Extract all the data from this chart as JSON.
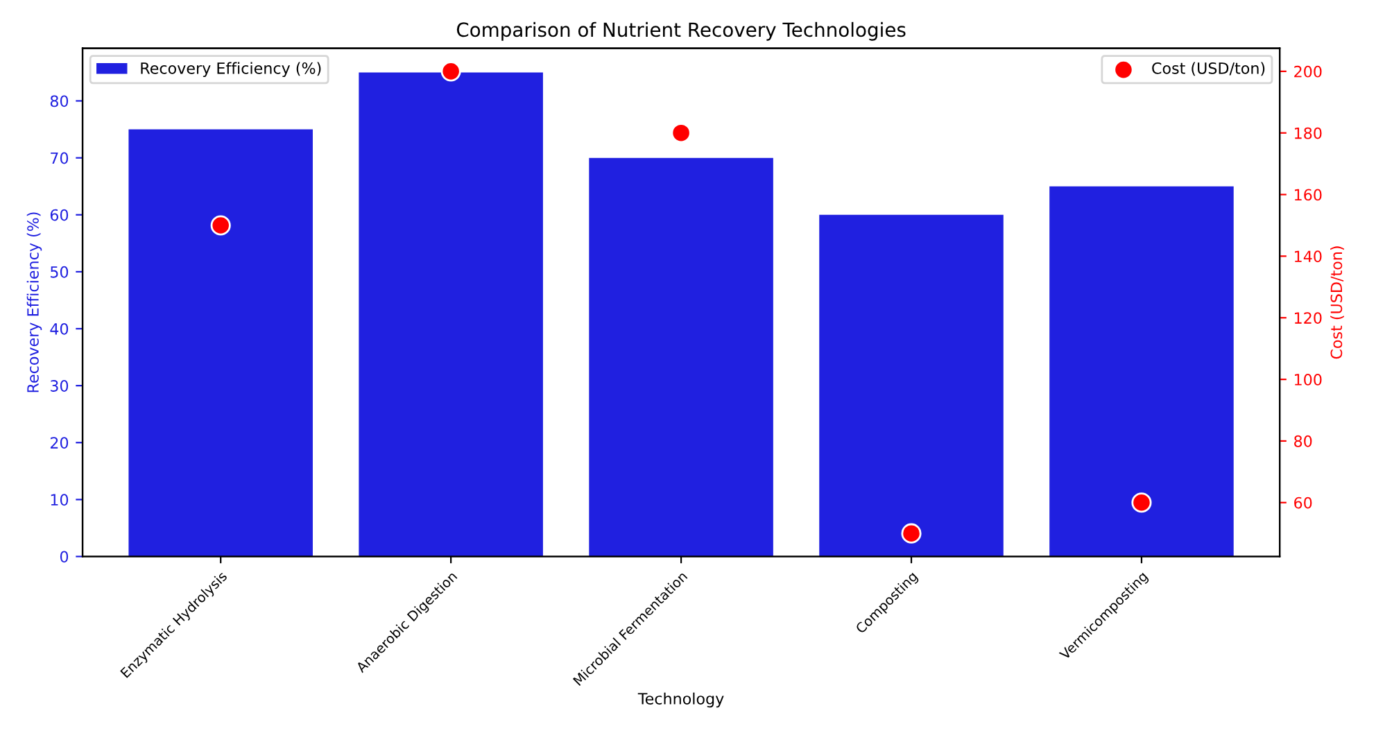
{
  "chart_data": {
    "type": "bar",
    "title": "Comparison of Nutrient Recovery Technologies",
    "xlabel": "Technology",
    "ylabel": "Recovery Efficiency (%)",
    "y2label": "Cost (USD/ton)",
    "categories": [
      "Enzymatic Hydrolysis",
      "Anaerobic Digestion",
      "Microbial Fermentation",
      "Composting",
      "Vermicomposting"
    ],
    "series": [
      {
        "name": "Recovery Efficiency (%)",
        "color": "#2020e0",
        "values": [
          75,
          85,
          70,
          60,
          65
        ]
      },
      {
        "name": "Cost (USD/ton)",
        "type": "scatter",
        "axis": "y2",
        "color": "#ff0000",
        "marker": "circle",
        "values": [
          150,
          200,
          180,
          50,
          60
        ]
      }
    ],
    "ylim": [
      0,
      89.25
    ],
    "yticks": [
      0,
      10,
      20,
      30,
      40,
      50,
      60,
      70,
      80
    ],
    "y2lim": [
      42.5,
      207.5
    ],
    "y2ticks": [
      60,
      80,
      100,
      120,
      140,
      160,
      180,
      200
    ],
    "grid": false,
    "legend": "top"
  }
}
